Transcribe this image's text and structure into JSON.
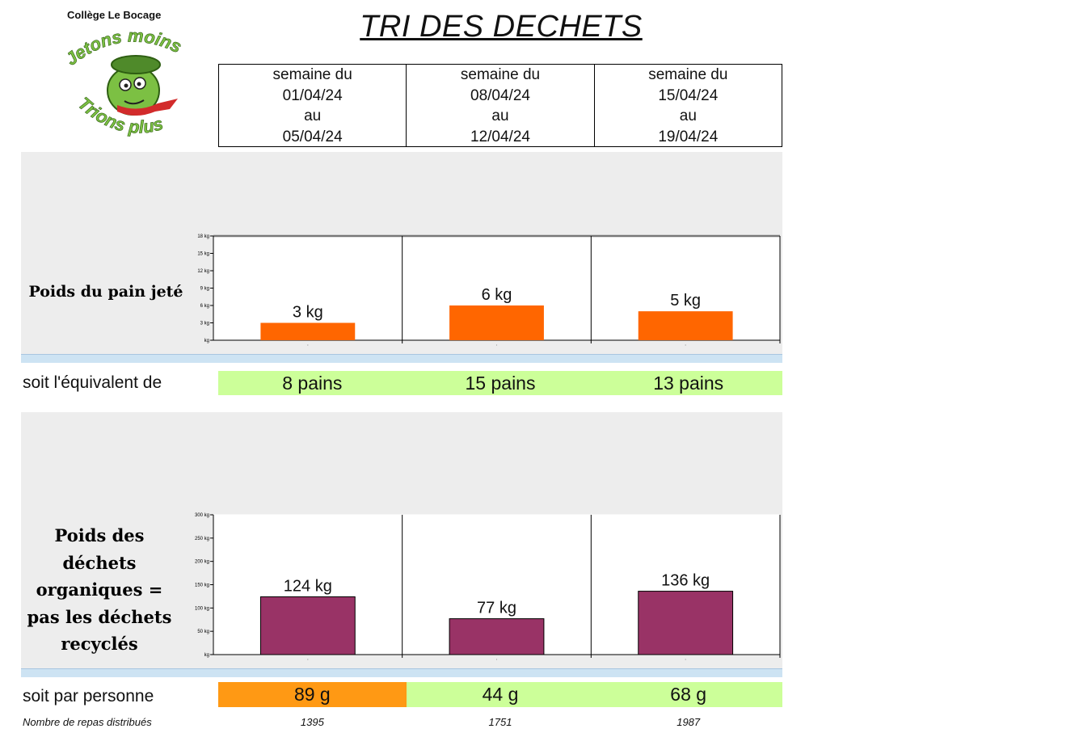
{
  "header": {
    "school": "Collège Le Bocage",
    "title": "TRI DES DECHETS",
    "logo": {
      "line1": "Jetons moins",
      "line2": "Trions plus"
    }
  },
  "weeks": [
    {
      "l1": "semaine du",
      "from": "01/04/24",
      "l3": "au",
      "to": "05/04/24"
    },
    {
      "l1": "semaine du",
      "from": "08/04/24",
      "l3": "au",
      "to": "12/04/24"
    },
    {
      "l1": "semaine du",
      "from": "15/04/24",
      "l3": "au",
      "to": "19/04/24"
    }
  ],
  "bread": {
    "label": "Poids du pain jeté",
    "equiv_label": "soit l'équivalent de",
    "equiv_values": [
      "8 pains",
      "15 pains",
      "13 pains"
    ]
  },
  "organic": {
    "label_lines": [
      "Poids des",
      "déchets",
      "organiques =",
      "pas les déchets",
      "recyclés"
    ],
    "per_person_label": "soit par personne",
    "per_person_values": [
      "89 g",
      "44 g",
      "68 g"
    ],
    "per_person_colors": [
      "#ff9914",
      "#ccff99",
      "#ccff99"
    ],
    "meals_label": "Nombre de repas distribués",
    "meals_values": [
      "1395",
      "1751",
      "1987"
    ]
  },
  "chart_data": [
    {
      "type": "bar",
      "categories": [
        "",
        "",
        ""
      ],
      "values": [
        3,
        6,
        5
      ],
      "data_labels": [
        "3 kg",
        "6 kg",
        "5 kg"
      ],
      "yticks": [
        0,
        3,
        6,
        9,
        12,
        15,
        18
      ],
      "ytick_labels": [
        "kg",
        "3 kg",
        "6 kg",
        "9 kg",
        "12 kg",
        "15 kg",
        "18 kg"
      ],
      "ylim": [
        0,
        18
      ],
      "color": "#ff6600",
      "title": "",
      "xlabel": "",
      "ylabel": ""
    },
    {
      "type": "bar",
      "categories": [
        "",
        "",
        ""
      ],
      "values": [
        124,
        77,
        136
      ],
      "data_labels": [
        "124 kg",
        "77 kg",
        "136 kg"
      ],
      "yticks": [
        0,
        50,
        100,
        150,
        200,
        250,
        300
      ],
      "ytick_labels": [
        "kg",
        "50 kg",
        "100 kg",
        "150 kg",
        "200 kg",
        "250 kg",
        "300 kg"
      ],
      "ylim": [
        0,
        300
      ],
      "color": "#993366",
      "title": "",
      "xlabel": "",
      "ylabel": ""
    }
  ]
}
